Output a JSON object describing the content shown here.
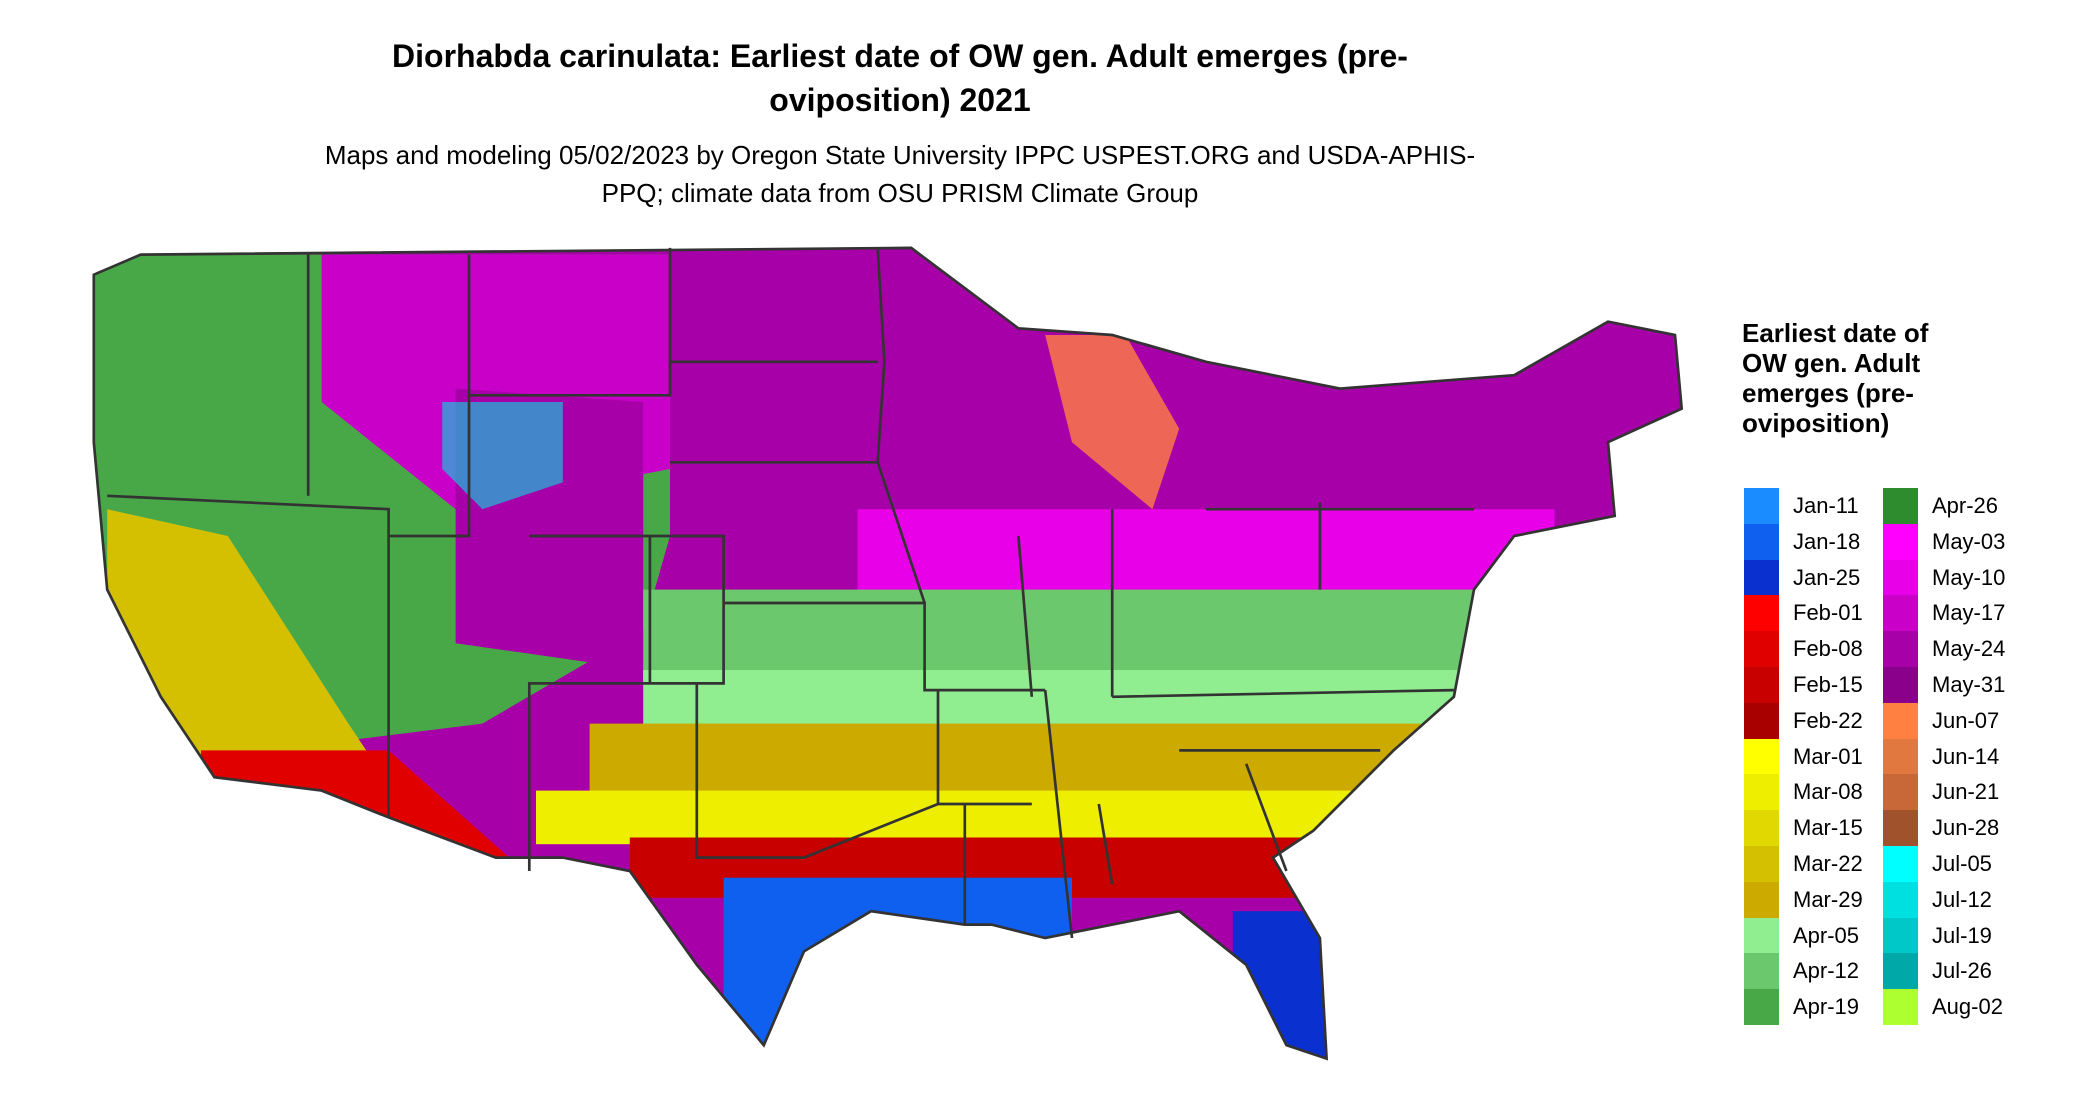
{
  "title": "Diorhabda carinulata: Earliest date of OW gen. Adult emerges (pre-oviposition) 2021",
  "subtitle": "Maps and modeling 05/02/2023 by Oregon State University IPPC USPEST.ORG and USDA-APHIS-PPQ; climate data from OSU PRISM Climate Group",
  "legend": {
    "title": "Earliest date of OW gen. Adult emerges (pre-oviposition)",
    "items": [
      {
        "label": "Jan-11",
        "color": "#1a8cff"
      },
      {
        "label": "Jan-18",
        "color": "#1060f0"
      },
      {
        "label": "Jan-25",
        "color": "#0a30d0"
      },
      {
        "label": "Feb-01",
        "color": "#ff0000"
      },
      {
        "label": "Feb-08",
        "color": "#e00000"
      },
      {
        "label": "Feb-15",
        "color": "#c80000"
      },
      {
        "label": "Feb-22",
        "color": "#a80000"
      },
      {
        "label": "Mar-01",
        "color": "#ffff00"
      },
      {
        "label": "Mar-08",
        "color": "#eeee00"
      },
      {
        "label": "Mar-15",
        "color": "#e0d800"
      },
      {
        "label": "Mar-22",
        "color": "#d4c000"
      },
      {
        "label": "Mar-29",
        "color": "#ccaa00"
      },
      {
        "label": "Apr-05",
        "color": "#90ee90"
      },
      {
        "label": "Apr-12",
        "color": "#6cc86c"
      },
      {
        "label": "Apr-19",
        "color": "#48a848"
      },
      {
        "label": "Apr-26",
        "color": "#2e8b2e"
      },
      {
        "label": "May-03",
        "color": "#ff00ff"
      },
      {
        "label": "May-10",
        "color": "#e800e8"
      },
      {
        "label": "May-17",
        "color": "#c800c8"
      },
      {
        "label": "May-24",
        "color": "#a800a8"
      },
      {
        "label": "May-31",
        "color": "#8b008b"
      },
      {
        "label": "Jun-07",
        "color": "#ff8040"
      },
      {
        "label": "Jun-14",
        "color": "#e07840"
      },
      {
        "label": "Jun-21",
        "color": "#c86838"
      },
      {
        "label": "Jun-28",
        "color": "#a0522d"
      },
      {
        "label": "Jul-05",
        "color": "#00ffff"
      },
      {
        "label": "Jul-12",
        "color": "#00e0e0"
      },
      {
        "label": "Jul-19",
        "color": "#00c8c8"
      },
      {
        "label": "Jul-26",
        "color": "#00a8a8"
      },
      {
        "label": "Aug-02",
        "color": "#adff2f"
      }
    ]
  }
}
